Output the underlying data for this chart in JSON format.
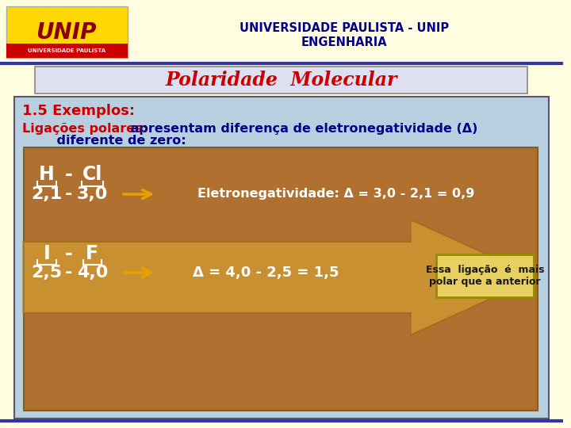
{
  "bg_color": "#fffde0",
  "header_text1": "UNIVERSIDADE PAULISTA - UNIP",
  "header_text2": "ENGENHARIA",
  "header_color": "#00008B",
  "title": "Polaridade  Molecular",
  "title_color": "#cc0000",
  "title_bg": "#dce0f0",
  "title_border": "#888888",
  "section_bg": "#b8cfe0",
  "section_border": "#555577",
  "label_15": "1.5 Exemplos:",
  "label_15_color": "#cc0000",
  "label_lig": "Ligações polares:",
  "label_lig_color": "#cc0000",
  "label_lig2": " apresentam diferença de eletronegatividade (Δ)",
  "label_lig2_color": "#00008B",
  "label_dif": "    diferente de zero:",
  "label_dif_color": "#00008B",
  "box_bg": "#b07030",
  "box_border": "#806020",
  "hcl_arrow_text": "Eletronegatividade: Δ = 3,0 - 2,1 = 0,9",
  "if_eq": "Δ = 4,0 - 2,5 = 1,5",
  "note_text": "Essa  ligação  é  mais\npolar que a anterior",
  "note_bg": "#e8d060",
  "note_border": "#9a8800",
  "white": "#ffffff",
  "footer_color": "#00008B",
  "arrow_color": "#c89030"
}
